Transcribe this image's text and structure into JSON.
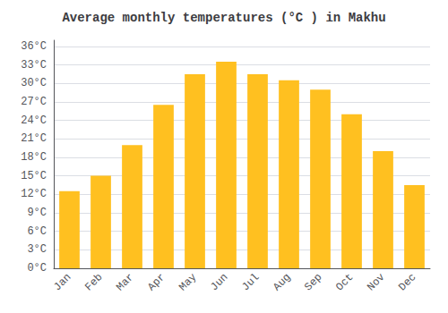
{
  "chart_data": {
    "type": "bar",
    "title": "Average monthly temperatures (°C ) in Makhu",
    "categories": [
      "Jan",
      "Feb",
      "Mar",
      "Apr",
      "May",
      "Jun",
      "Jul",
      "Aug",
      "Sep",
      "Oct",
      "Nov",
      "Dec"
    ],
    "values": [
      12.5,
      15.0,
      20.0,
      26.5,
      31.5,
      33.5,
      31.5,
      30.5,
      29.0,
      25.0,
      19.0,
      13.5
    ],
    "color": "#FFC020",
    "ylim": [
      0,
      37
    ],
    "yticks": [
      {
        "value": 0,
        "label": "0°C"
      },
      {
        "value": 3,
        "label": "3°C"
      },
      {
        "value": 6,
        "label": "6°C"
      },
      {
        "value": 9,
        "label": "9°C"
      },
      {
        "value": 12,
        "label": "12°C"
      },
      {
        "value": 15,
        "label": "15°C"
      },
      {
        "value": 18,
        "label": "18°C"
      },
      {
        "value": 21,
        "label": "21°C"
      },
      {
        "value": 24,
        "label": "24°C"
      },
      {
        "value": 27,
        "label": "27°C"
      },
      {
        "value": 30,
        "label": "30°C"
      },
      {
        "value": 33,
        "label": "33°C"
      },
      {
        "value": 36,
        "label": "36°C"
      }
    ],
    "grid": true
  }
}
